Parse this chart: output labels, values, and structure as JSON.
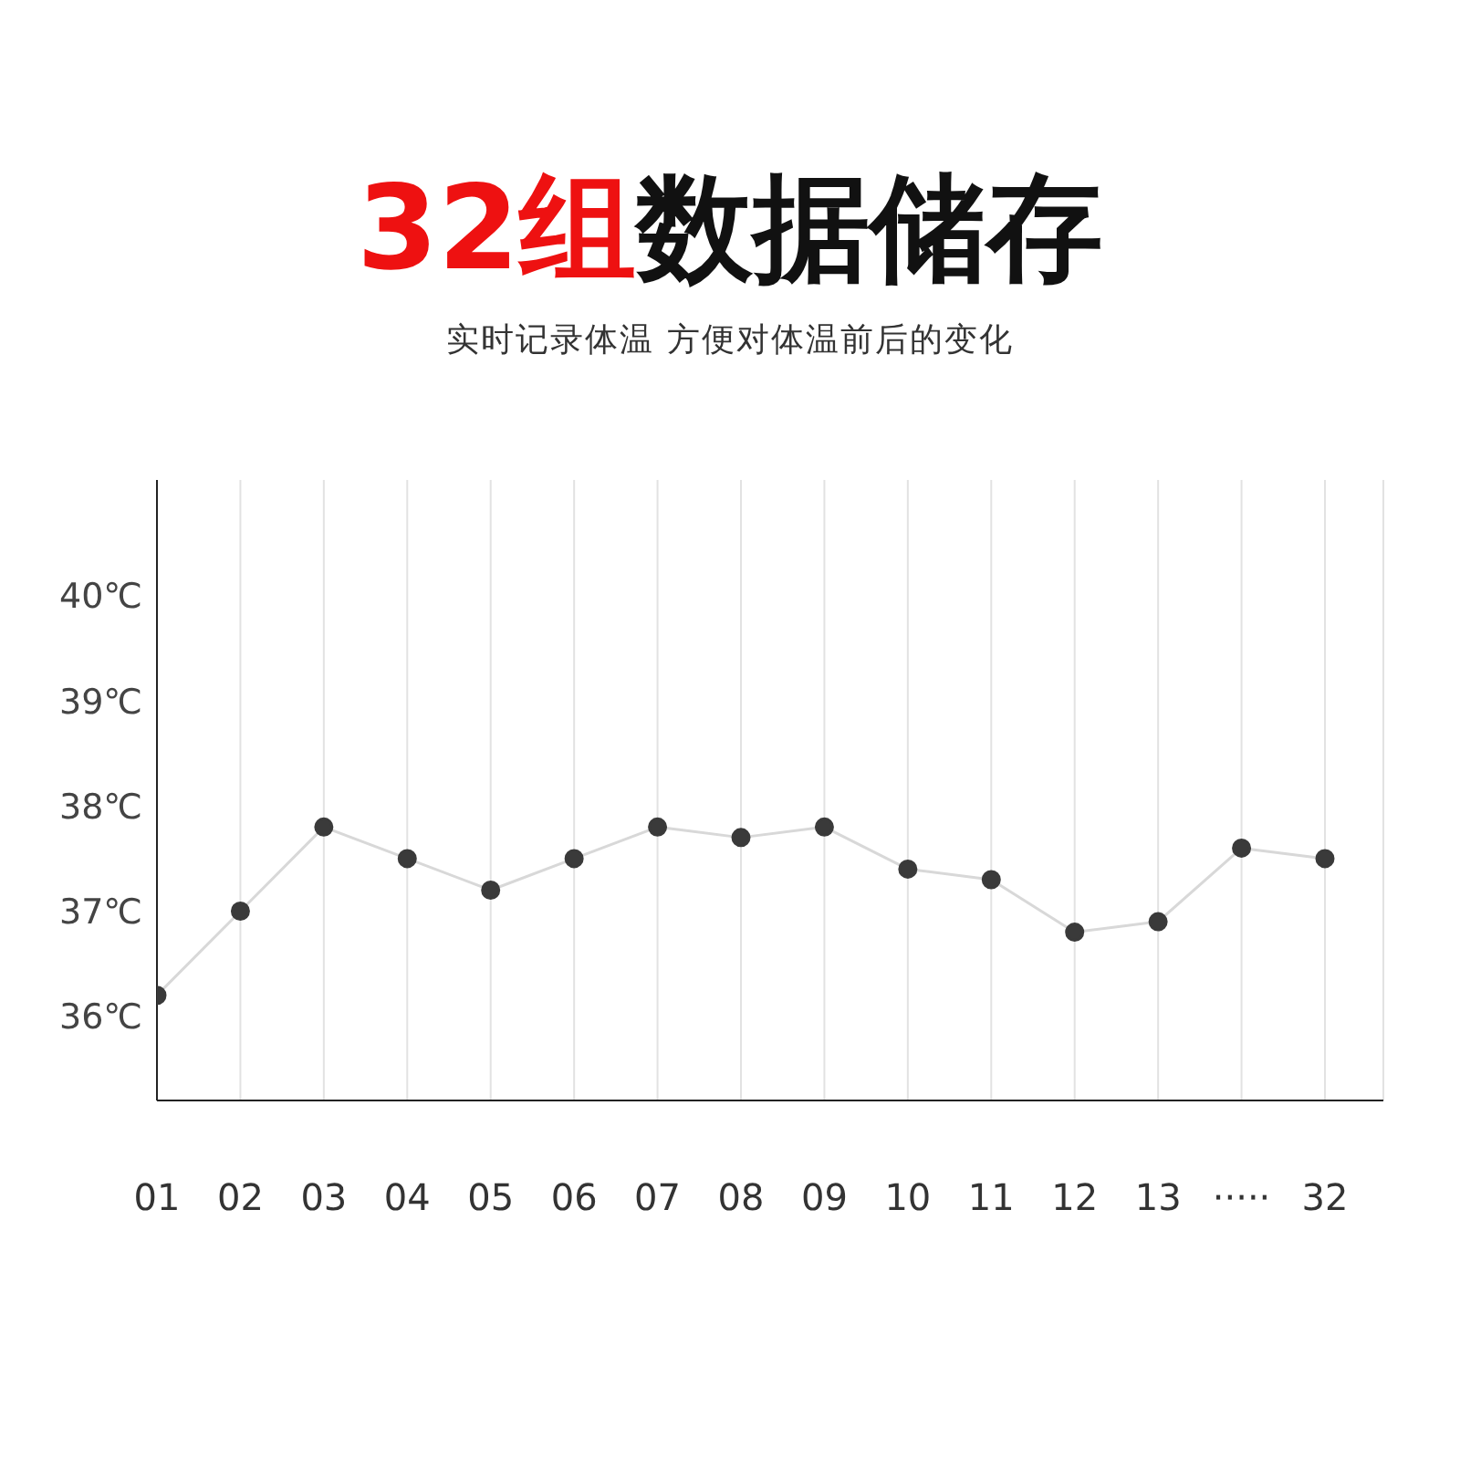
{
  "chart_data": {
    "type": "line",
    "title": "32组数据储存",
    "subtitle": "实时记录体温 方便对体温前后的变化",
    "categories": [
      "01",
      "02",
      "03",
      "04",
      "05",
      "06",
      "07",
      "08",
      "09",
      "10",
      "11",
      "12",
      "13",
      "·····",
      "32"
    ],
    "series": [
      {
        "color": "#3a3a3a",
        "values": [
          36.2,
          37.0,
          37.8,
          37.5,
          37.2,
          37.5,
          37.8,
          37.7,
          37.8,
          37.4,
          37.3,
          36.8,
          36.9,
          37.6,
          37.5
        ]
      }
    ],
    "ylim": [
      35.2,
      41.1
    ],
    "yticks": [
      {
        "value": 36,
        "label": "36℃"
      },
      {
        "value": 37,
        "label": "37℃"
      },
      {
        "value": 38,
        "label": "38℃"
      },
      {
        "value": 39,
        "label": "39℃"
      },
      {
        "value": 40,
        "label": "40℃"
      }
    ],
    "grid": "x",
    "marker": "circle",
    "line_style": "solid"
  }
}
